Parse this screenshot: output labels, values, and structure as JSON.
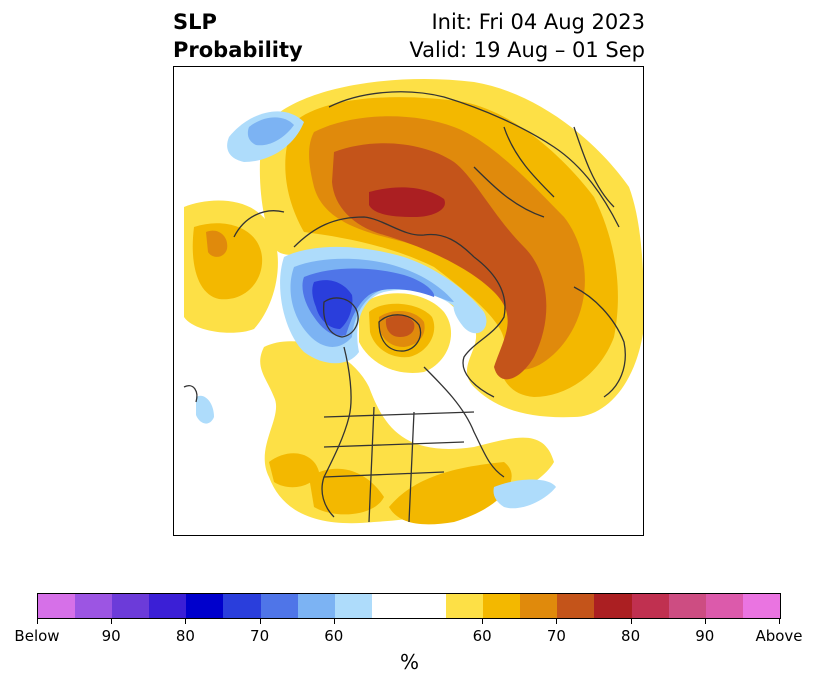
{
  "title": {
    "left_line1": "SLP",
    "left_line2": "Probability",
    "right_line1": "Init: Fri 04 Aug 2023",
    "right_line2": "Valid: 19 Aug – 01 Sep"
  },
  "colorbar": {
    "unit": "%",
    "colors": [
      "#d670e8",
      "#9c55e3",
      "#6c3bd9",
      "#3b1fd6",
      "#0000cc",
      "#2a3edc",
      "#4f75e8",
      "#7cb3f3",
      "#aedcfb",
      "#ffffff",
      "#ffffff",
      "#fde046",
      "#f3b800",
      "#e08a0c",
      "#c4541a",
      "#ab1f22",
      "#c03050",
      "#cd4d82",
      "#dc5aab",
      "#ea74e1"
    ],
    "tick_labels": [
      "Below",
      "90",
      "80",
      "70",
      "60",
      "60",
      "70",
      "80",
      "90",
      "Above"
    ]
  },
  "map": {
    "colors": {
      "yellow": "#fde046",
      "gold": "#f3b800",
      "orange": "#e08a0c",
      "rust": "#c4541a",
      "darkred": "#ab1f22",
      "lightblue": "#aedcfb",
      "blue2": "#7cb3f3",
      "blue3": "#4f75e8",
      "blue4": "#2a3edc"
    }
  }
}
